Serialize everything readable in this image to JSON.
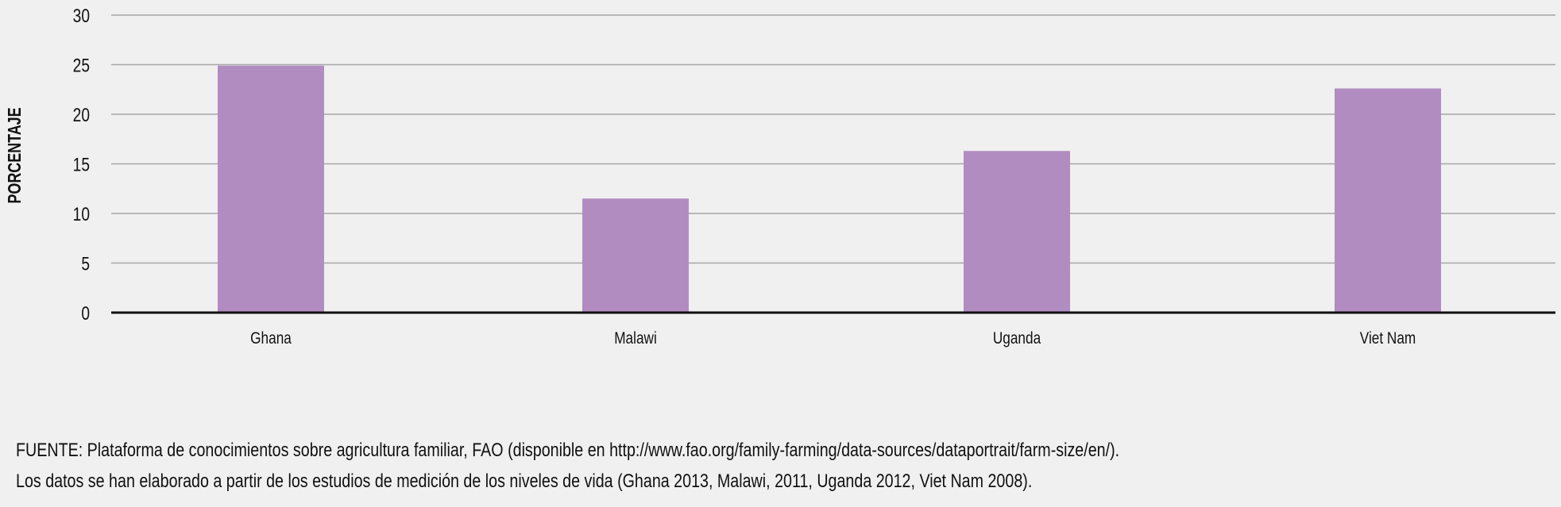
{
  "chart_data": {
    "type": "bar",
    "categories": [
      "Ghana",
      "Malawi",
      "Uganda",
      "Viet Nam"
    ],
    "values": [
      24.9,
      11.5,
      16.3,
      22.6
    ],
    "ylabel": "PORCENTAJE",
    "xlabel": "",
    "ylim": [
      0,
      30
    ],
    "yticks": [
      0,
      5,
      10,
      15,
      20,
      25,
      30
    ],
    "grid": true,
    "bar_color": "#b18cc1",
    "grid_color": "#a6a6a6",
    "axis_color": "#111111"
  },
  "source": {
    "line1": "FUENTE: Plataforma de conocimientos sobre agricultura familiar, FAO (disponible en http://www.fao.org/family-farming/data-sources/dataportrait/farm-size/en/).",
    "line2": "Los datos se han elaborado a partir de los estudios de medición de los niveles de vida (Ghana 2013, Malawi, 2011, Uganda 2012, Viet Nam 2008)."
  }
}
